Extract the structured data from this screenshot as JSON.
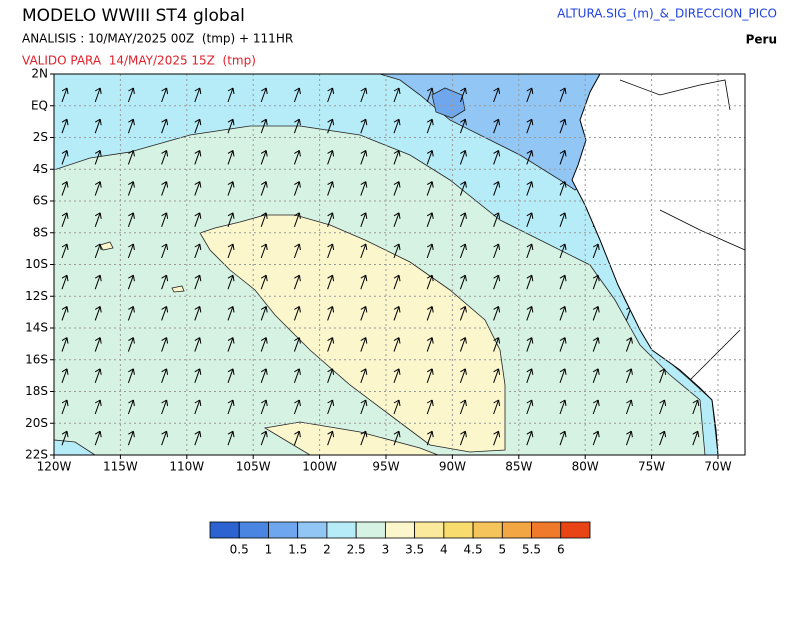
{
  "header": {
    "title": "MODELO WWIII ST4 global",
    "analysis": "ANALISIS : 10/MAY/2025 00Z  (tmp) + 111HR",
    "valid": "VALIDO PARA  14/MAY/2025 15Z  (tmp)",
    "variable": "ALTURA.SIG_(m)_&_DIRECCION_PICO",
    "region": "Peru"
  },
  "map": {
    "lat_labels": [
      "2N",
      "EQ",
      "2S",
      "4S",
      "6S",
      "8S",
      "10S",
      "12S",
      "14S",
      "16S",
      "18S",
      "20S",
      "22S"
    ],
    "lon_labels": [
      "120W",
      "115W",
      "110W",
      "105W",
      "100W",
      "95W",
      "90W",
      "85W",
      "80W",
      "75W",
      "70W"
    ]
  },
  "colorbar": {
    "colors": [
      "#2c63d0",
      "#4a85e2",
      "#6ea7ee",
      "#92c6f5",
      "#b6ecf8",
      "#d6f2e2",
      "#fcf6cc",
      "#fbea9c",
      "#f8dc6e",
      "#f5c45a",
      "#f2a644",
      "#ef7a2c",
      "#e84416"
    ],
    "labels": [
      "0.5",
      "1",
      "1.5",
      "2",
      "2.5",
      "3",
      "3.5",
      "4",
      "4.5",
      "5",
      "5.5",
      "6"
    ]
  }
}
